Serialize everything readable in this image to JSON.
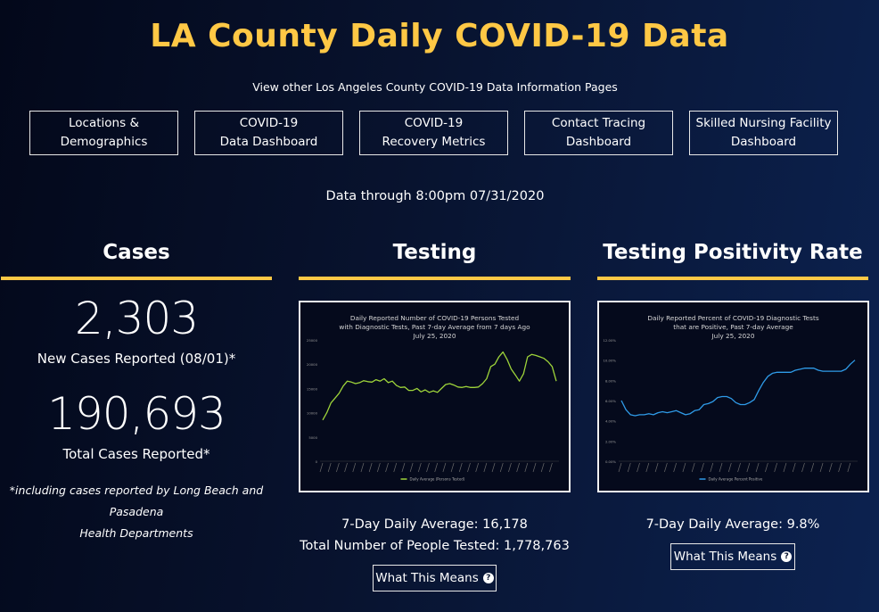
{
  "page": {
    "title": "LA County Daily COVID-19 Data",
    "subtitle": "View other Los Angeles County COVID-19 Data Information Pages",
    "data_through": "Data through 8:00pm 07/31/2020"
  },
  "nav": [
    {
      "line1": "Locations &",
      "line2": "Demographics"
    },
    {
      "line1": "COVID-19",
      "line2": "Data Dashboard"
    },
    {
      "line1": "COVID-19",
      "line2": "Recovery Metrics"
    },
    {
      "line1": "Contact Tracing",
      "line2": "Dashboard"
    },
    {
      "line1": "Skilled Nursing Facility",
      "line2": "Dashboard"
    }
  ],
  "cases": {
    "heading": "Cases",
    "new_cases": "2,303",
    "new_cases_label": "New Cases Reported (08/01)*",
    "total_cases": "190,693",
    "total_cases_label": "Total Cases Reported*",
    "note_line1": "*including cases reported by Long Beach and Pasadena",
    "note_line2": "Health Departments"
  },
  "testing": {
    "heading": "Testing",
    "daily_avg": "7-Day Daily Average: 16,178",
    "total_tested": "Total Number of People Tested: 1,778,763",
    "button": "What This Means"
  },
  "positivity": {
    "heading": "Testing Positivity Rate",
    "daily_avg": "7-Day Daily Average: 9.8%",
    "button": "What This Means"
  },
  "colors": {
    "accent": "#ffc845",
    "testing_line": "#9ed43a",
    "positivity_line": "#2f9be8"
  },
  "chart_data": [
    {
      "type": "line",
      "title": "Daily Reported Number of COVID-19 Persons Tested with Diagnostic Tests, Past 7-day Average from 7 days Ago",
      "subtitle": "July 25, 2020",
      "title_lines": [
        "Daily Reported Number of COVID-19 Persons Tested",
        "with Diagnostic Tests, Past 7-day Average from 7 days Ago",
        "July 25, 2020"
      ],
      "ylim": [
        0,
        25000
      ],
      "yticks": [
        "0",
        "5000",
        "10000",
        "15000",
        "20000",
        "25000"
      ],
      "legend": "Daily Average (Persons Tested)",
      "legend_position": "bottom",
      "series": [
        {
          "name": "Daily Average (Persons Tested)",
          "values": [
            8500,
            10000,
            12000,
            13000,
            14000,
            15500,
            16500,
            16300,
            16000,
            16200,
            16600,
            16400,
            16300,
            16800,
            16500,
            17000,
            16200,
            16500,
            15600,
            15200,
            15300,
            14600,
            14600,
            15000,
            14300,
            14700,
            14200,
            14500,
            14200,
            15000,
            15800,
            16000,
            15700,
            15300,
            15200,
            15400,
            15200,
            15200,
            15300,
            16000,
            17000,
            19500,
            20000,
            21500,
            22500,
            21000,
            19000,
            17800,
            16500,
            18000,
            21500,
            22000,
            21800,
            21500,
            21200,
            20500,
            19500,
            16500
          ]
        }
      ]
    },
    {
      "type": "line",
      "title": "Daily Reported Percent of COVID-19 Diagnostic Tests that are Positive, Past 7-day Average",
      "subtitle": "July 25, 2020",
      "title_lines": [
        "Daily Reported Percent of COVID-19 Diagnostic Tests",
        "that are Positive, Past 7-day Average",
        "July 25, 2020"
      ],
      "ylim": [
        0,
        12
      ],
      "yticks": [
        "0.00%",
        "2.00%",
        "4.00%",
        "6.00%",
        "8.00%",
        "10.00%",
        "12.00%"
      ],
      "legend": "Daily Average Percent Positive",
      "legend_position": "bottom",
      "series": [
        {
          "name": "Daily Average Percent Positive",
          "values": [
            6.0,
            5.1,
            4.6,
            4.5,
            4.6,
            4.6,
            4.7,
            4.6,
            4.8,
            4.9,
            4.8,
            4.9,
            5.0,
            4.8,
            4.6,
            4.7,
            5.0,
            5.1,
            5.6,
            5.7,
            5.9,
            6.3,
            6.4,
            6.4,
            6.2,
            5.8,
            5.6,
            5.6,
            5.8,
            6.1,
            7.0,
            7.8,
            8.4,
            8.7,
            8.8,
            8.8,
            8.8,
            8.8,
            9.0,
            9.1,
            9.2,
            9.2,
            9.2,
            9.0,
            8.9,
            8.9,
            8.9,
            8.9,
            8.9,
            9.1,
            9.6,
            10.0
          ]
        }
      ]
    }
  ]
}
